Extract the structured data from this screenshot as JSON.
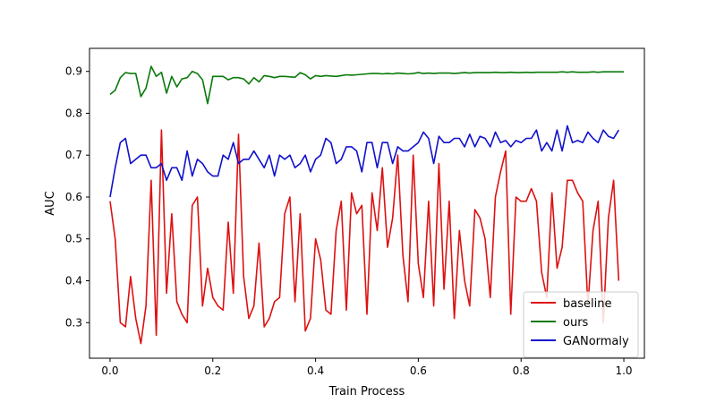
{
  "chart_data": {
    "type": "line",
    "title": "",
    "xlabel": "Train Process",
    "ylabel": "AUC",
    "xlim": [
      -0.04,
      1.04
    ],
    "ylim": [
      0.215,
      0.955
    ],
    "xticks": [
      "0.0",
      "0.2",
      "0.4",
      "0.6",
      "0.8",
      "1.0"
    ],
    "yticks": [
      "0.3",
      "0.4",
      "0.5",
      "0.6",
      "0.7",
      "0.8",
      "0.9"
    ],
    "grid": false,
    "legend_position": "lower-right",
    "x": [
      0.0,
      0.01,
      0.02,
      0.03,
      0.04,
      0.05,
      0.06,
      0.07,
      0.08,
      0.09,
      0.1,
      0.11,
      0.12,
      0.13,
      0.14,
      0.15,
      0.16,
      0.17,
      0.18,
      0.19,
      0.2,
      0.21,
      0.22,
      0.23,
      0.24,
      0.25,
      0.26,
      0.27,
      0.28,
      0.29,
      0.3,
      0.31,
      0.32,
      0.33,
      0.34,
      0.35,
      0.36,
      0.37,
      0.38,
      0.39,
      0.4,
      0.41,
      0.42,
      0.43,
      0.44,
      0.45,
      0.46,
      0.47,
      0.48,
      0.49,
      0.5,
      0.51,
      0.52,
      0.53,
      0.54,
      0.55,
      0.56,
      0.57,
      0.58,
      0.59,
      0.6,
      0.61,
      0.62,
      0.63,
      0.64,
      0.65,
      0.66,
      0.67,
      0.68,
      0.69,
      0.7,
      0.71,
      0.72,
      0.73,
      0.74,
      0.75,
      0.76,
      0.77,
      0.78,
      0.79,
      0.8,
      0.81,
      0.82,
      0.83,
      0.84,
      0.85,
      0.86,
      0.87,
      0.88,
      0.89,
      0.9,
      0.91,
      0.92,
      0.93,
      0.94,
      0.95,
      0.96,
      0.97,
      0.98,
      0.99,
      1.0
    ],
    "series": [
      {
        "name": "baseline",
        "color": "#dd1111",
        "values": [
          0.59,
          0.5,
          0.3,
          0.29,
          0.41,
          0.31,
          0.25,
          0.34,
          0.64,
          0.27,
          0.76,
          0.37,
          0.56,
          0.35,
          0.32,
          0.3,
          0.58,
          0.6,
          0.34,
          0.43,
          0.36,
          0.34,
          0.33,
          0.54,
          0.37,
          0.75,
          0.41,
          0.31,
          0.34,
          0.49,
          0.29,
          0.31,
          0.35,
          0.36,
          0.56,
          0.6,
          0.35,
          0.56,
          0.28,
          0.31,
          0.5,
          0.45,
          0.33,
          0.32,
          0.52,
          0.59,
          0.33,
          0.61,
          0.56,
          0.58,
          0.32,
          0.61,
          0.52,
          0.67,
          0.48,
          0.55,
          0.7,
          0.46,
          0.35,
          0.7,
          0.44,
          0.36,
          0.59,
          0.34,
          0.68,
          0.38,
          0.59,
          0.31,
          0.52,
          0.4,
          0.34,
          0.57,
          0.55,
          0.5,
          0.36,
          0.6,
          0.66,
          0.71,
          0.32,
          0.6,
          0.59,
          0.59,
          0.62,
          0.59,
          0.42,
          0.36,
          0.61,
          0.43,
          0.48,
          0.64,
          0.64,
          0.61,
          0.59,
          0.34,
          0.52,
          0.59,
          0.3,
          0.55,
          0.64,
          0.4,
          null
        ]
      },
      {
        "name": "ours",
        "color": "#0a7a0a",
        "values": [
          0.845,
          0.855,
          0.885,
          0.897,
          0.895,
          0.895,
          0.84,
          0.86,
          0.912,
          0.888,
          0.898,
          0.848,
          0.888,
          0.863,
          0.882,
          0.885,
          0.9,
          0.895,
          0.88,
          0.823,
          0.888,
          0.888,
          0.888,
          0.88,
          0.885,
          0.885,
          0.882,
          0.87,
          0.885,
          0.875,
          0.89,
          0.888,
          0.885,
          0.888,
          0.888,
          0.887,
          0.886,
          0.897,
          0.892,
          0.882,
          0.89,
          0.888,
          0.89,
          0.889,
          0.888,
          0.89,
          0.892,
          0.891,
          0.892,
          0.893,
          0.894,
          0.895,
          0.895,
          0.894,
          0.895,
          0.894,
          0.896,
          0.895,
          0.894,
          0.895,
          0.897,
          0.895,
          0.896,
          0.895,
          0.896,
          0.896,
          0.896,
          0.895,
          0.896,
          0.897,
          0.896,
          0.897,
          0.897,
          0.897,
          0.897,
          0.898,
          0.897,
          0.897,
          0.898,
          0.897,
          0.897,
          0.898,
          0.897,
          0.898,
          0.898,
          0.898,
          0.898,
          0.898,
          0.899,
          0.898,
          0.899,
          0.898,
          0.898,
          0.898,
          0.899,
          0.898,
          0.899,
          0.899,
          0.899,
          0.899,
          0.899
        ]
      },
      {
        "name": "GANormaly",
        "color": "#1010cc",
        "values": [
          0.6,
          0.67,
          0.73,
          0.74,
          0.68,
          0.69,
          0.7,
          0.7,
          0.67,
          0.67,
          0.68,
          0.64,
          0.67,
          0.67,
          0.64,
          0.71,
          0.65,
          0.69,
          0.68,
          0.66,
          0.65,
          0.65,
          0.7,
          0.69,
          0.73,
          0.68,
          0.69,
          0.69,
          0.71,
          0.69,
          0.67,
          0.7,
          0.65,
          0.7,
          0.69,
          0.7,
          0.67,
          0.68,
          0.7,
          0.66,
          0.69,
          0.7,
          0.74,
          0.73,
          0.68,
          0.69,
          0.72,
          0.72,
          0.71,
          0.66,
          0.73,
          0.73,
          0.67,
          0.73,
          0.73,
          0.68,
          0.72,
          0.71,
          0.71,
          0.72,
          0.73,
          0.755,
          0.74,
          0.68,
          0.745,
          0.73,
          0.73,
          0.74,
          0.74,
          0.72,
          0.75,
          0.72,
          0.745,
          0.74,
          0.72,
          0.755,
          0.73,
          0.735,
          0.72,
          0.735,
          0.73,
          0.74,
          0.74,
          0.76,
          0.71,
          0.73,
          0.71,
          0.76,
          0.71,
          0.77,
          0.73,
          0.735,
          0.73,
          0.755,
          0.74,
          0.73,
          0.76,
          0.745,
          0.74,
          0.76,
          null
        ]
      }
    ]
  }
}
